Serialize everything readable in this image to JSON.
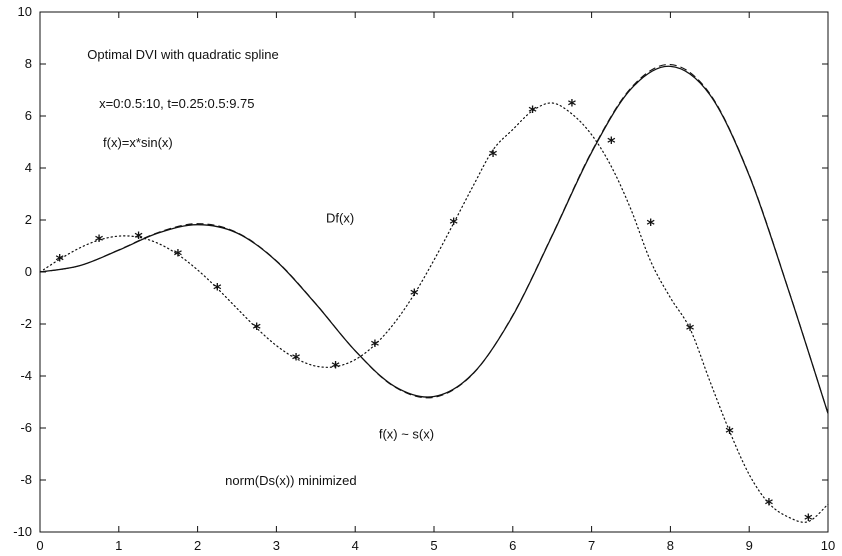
{
  "chart_data": {
    "type": "line",
    "title": "",
    "xlabel": "",
    "ylabel": "",
    "xlim": [
      0,
      10
    ],
    "ylim": [
      -10,
      10
    ],
    "x_ticks": [
      "0",
      "1",
      "2",
      "3",
      "4",
      "5",
      "6",
      "7",
      "8",
      "9",
      "10"
    ],
    "y_ticks": [
      "-10",
      "-8",
      "-6",
      "-4",
      "-2",
      "0",
      "2",
      "4",
      "6",
      "8",
      "10"
    ],
    "grid": false,
    "annotations": [
      {
        "text": "Optimal DVI with quadratic spline",
        "x": 0.6,
        "y": 8.2
      },
      {
        "text": "x=0:0.5:10, t=0.25:0.5:9.75",
        "x": 0.75,
        "y": 6.3
      },
      {
        "text": "f(x)=x*sin(x)",
        "x": 0.8,
        "y": 4.8
      },
      {
        "text": "Df(x)",
        "x": 3.63,
        "y": 1.9
      },
      {
        "text": "f(x) ~ s(x)",
        "x": 4.3,
        "y": -6.4
      },
      {
        "text": "norm(Ds(x))  minimized",
        "x": 2.35,
        "y": -8.2
      }
    ],
    "series": [
      {
        "style": "solid",
        "function": "x*sin(x)",
        "x": [
          0,
          0.5,
          1,
          1.5,
          2,
          2.5,
          3,
          3.5,
          4,
          4.5,
          5,
          5.5,
          6,
          6.5,
          7,
          7.5,
          8,
          8.5,
          9,
          9.5,
          10
        ],
        "y": [
          0,
          0.24,
          0.84,
          1.5,
          1.82,
          1.5,
          0.42,
          -1.23,
          -3.03,
          -4.4,
          -4.79,
          -3.89,
          -1.68,
          1.4,
          4.6,
          7.04,
          7.91,
          6.82,
          3.71,
          -0.71,
          -5.44
        ]
      },
      {
        "style": "dashed",
        "x": [
          0,
          0.5,
          1,
          1.5,
          2,
          2.5,
          3,
          3.5,
          4,
          4.5,
          5,
          5.5,
          6,
          6.5,
          7,
          7.5,
          8,
          8.5,
          9,
          9.5,
          10
        ],
        "y": [
          0,
          0.24,
          0.85,
          1.52,
          1.86,
          1.52,
          0.43,
          -1.22,
          -3.03,
          -4.42,
          -4.82,
          -3.9,
          -1.66,
          1.42,
          4.63,
          7.08,
          7.98,
          6.86,
          3.73,
          -0.7,
          -5.44
        ]
      },
      {
        "style": "dotted",
        "function": "sin(x)+x*cos(x)",
        "x": [
          0,
          0.25,
          0.5,
          0.75,
          1,
          1.25,
          1.5,
          1.75,
          2,
          2.25,
          2.5,
          2.75,
          3,
          3.25,
          3.5,
          3.75,
          4,
          4.25,
          4.5,
          4.75,
          5,
          5.25,
          5.5,
          5.75,
          6,
          6.25,
          6.5,
          6.75,
          7,
          7.25,
          7.5,
          7.75,
          8,
          8.25,
          8.5,
          8.75,
          9,
          9.25,
          9.5,
          9.75,
          10
        ],
        "y": [
          0,
          0.49,
          0.92,
          1.23,
          1.38,
          1.34,
          1.1,
          0.67,
          0.08,
          -0.63,
          -1.4,
          -2.16,
          -2.83,
          -3.33,
          -3.62,
          -3.64,
          -3.37,
          -2.8,
          -1.95,
          -0.85,
          0.46,
          1.88,
          3.33,
          4.7,
          5.48,
          6.2,
          6.5,
          6.08,
          5.28,
          4.06,
          2.4,
          0.41,
          -0.99,
          -2.19,
          -4.19,
          -6.12,
          -7.79,
          -8.9,
          -9.43,
          -9.6,
          -8.93
        ]
      },
      {
        "style": "markers",
        "marker": "*",
        "x": [
          0.25,
          0.75,
          1.25,
          1.75,
          2.25,
          2.75,
          3.25,
          3.75,
          4.25,
          4.75,
          5.25,
          5.75,
          6.25,
          6.75,
          7.25,
          7.75,
          8.25,
          8.75,
          9.25,
          9.75
        ],
        "y": [
          0.49,
          1.23,
          1.34,
          0.67,
          -0.63,
          -2.16,
          -3.33,
          -3.64,
          -2.8,
          -0.85,
          1.88,
          4.5,
          6.2,
          6.45,
          5.0,
          1.85,
          -2.19,
          -6.15,
          -8.9,
          -9.5
        ]
      }
    ]
  }
}
